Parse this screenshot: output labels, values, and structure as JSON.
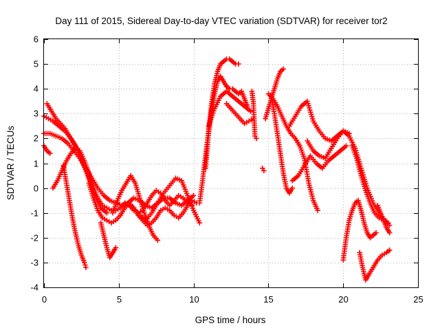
{
  "chart_data": {
    "type": "scatter",
    "title": "Day 111 of 2015, Sidereal Day-to-day VTEC variation (SDTVAR) for receiver tor2",
    "xlabel": "GPS time / hours",
    "ylabel": "SDTVAR / TECUs",
    "xlim": [
      0,
      25
    ],
    "ylim": [
      -4,
      6
    ],
    "xticks": [
      "0",
      "5",
      "10",
      "15",
      "20",
      "25"
    ],
    "yticks": [
      "-4",
      "-3",
      "-2",
      "-1",
      "0",
      "1",
      "2",
      "3",
      "4",
      "5",
      "6"
    ],
    "grid": true,
    "marker": "+",
    "color": "#ff0000",
    "series": [
      {
        "x": [
          0.0,
          0.3,
          0.6,
          1.0,
          1.4,
          1.8,
          2.2,
          2.6,
          3.0,
          3.4,
          3.8,
          4.2
        ],
        "y": [
          2.9,
          2.8,
          2.7,
          2.5,
          2.3,
          2.0,
          1.6,
          1.0,
          0.4,
          -0.3,
          -0.8,
          -1.0
        ]
      },
      {
        "x": [
          0.2,
          0.5,
          0.8,
          1.1,
          1.4,
          1.7,
          2.0,
          2.3,
          2.6,
          2.9,
          3.2
        ],
        "y": [
          3.4,
          3.1,
          2.8,
          2.6,
          2.4,
          2.1,
          1.8,
          1.5,
          1.1,
          0.6,
          0.1
        ]
      },
      {
        "x": [
          0.0,
          0.4,
          0.8,
          1.2,
          1.6,
          2.0,
          2.4,
          2.8,
          3.2,
          3.6,
          4.0,
          4.4,
          4.8,
          5.2,
          5.6,
          6.0,
          6.4,
          6.8,
          7.2,
          7.6,
          8.0,
          8.4,
          8.8,
          9.2,
          9.6,
          10.0
        ],
        "y": [
          2.2,
          2.2,
          2.1,
          2.0,
          1.8,
          1.5,
          1.2,
          0.8,
          0.4,
          0.0,
          -0.3,
          -0.5,
          -0.6,
          -0.7,
          -0.6,
          -0.4,
          -0.5,
          -0.7,
          -0.8,
          -0.6,
          -0.4,
          -0.4,
          -0.6,
          -0.7,
          -0.5,
          -0.3
        ]
      },
      {
        "x": [
          0.0,
          0.2,
          0.4
        ],
        "y": [
          1.7,
          1.5,
          1.4
        ]
      },
      {
        "x": [
          0.6,
          0.9,
          1.2,
          1.5,
          1.8,
          2.1,
          2.4,
          2.7,
          3.0,
          3.3,
          3.6,
          3.9,
          4.2,
          4.5,
          4.8,
          5.1,
          5.4,
          5.7,
          6.0,
          6.3,
          6.6,
          6.9,
          7.2,
          7.5,
          7.8,
          8.1,
          8.4,
          8.7,
          9.0,
          9.3,
          9.6,
          9.9
        ],
        "y": [
          0.0,
          0.3,
          0.7,
          1.1,
          1.4,
          1.6,
          1.5,
          1.1,
          0.6,
          0.0,
          -0.4,
          -0.7,
          -0.8,
          -0.9,
          -0.9,
          -0.8,
          -0.6,
          -0.7,
          -0.9,
          -1.0,
          -0.9,
          -0.6,
          -0.3,
          -0.1,
          -0.2,
          -0.5,
          -0.7,
          -0.5,
          -0.3,
          -0.4,
          -0.6,
          -0.7
        ]
      },
      {
        "x": [
          1.3,
          1.5,
          1.7,
          1.9,
          2.1,
          2.3,
          2.5,
          2.7,
          2.8
        ],
        "y": [
          0.9,
          0.2,
          -0.5,
          -1.2,
          -1.8,
          -2.3,
          -2.7,
          -3.0,
          -3.2
        ]
      },
      {
        "x": [
          3.0,
          3.3,
          3.6,
          3.9,
          4.2,
          4.5,
          4.8,
          5.1,
          5.4,
          5.7,
          6.0,
          6.3,
          6.6,
          6.9,
          7.2,
          7.5,
          7.8,
          8.1,
          8.4,
          8.7,
          9.0,
          9.3,
          9.6,
          9.9,
          10.2
        ],
        "y": [
          0.2,
          -0.4,
          -0.9,
          -1.2,
          -1.3,
          -1.4,
          -1.3,
          -1.1,
          -0.8,
          -0.6,
          -0.8,
          -1.1,
          -1.3,
          -1.5,
          -1.4,
          -1.2,
          -0.9,
          -0.8,
          -0.9,
          -1.1,
          -1.2,
          -1.0,
          -0.7,
          -0.5,
          -0.6
        ]
      },
      {
        "x": [
          3.8,
          4.0,
          4.2,
          4.4,
          4.6,
          4.8
        ],
        "y": [
          -1.4,
          -1.9,
          -2.4,
          -2.8,
          -2.6,
          -2.4
        ]
      },
      {
        "x": [
          4.6,
          4.9,
          5.2,
          5.5,
          5.8,
          6.1,
          6.4,
          6.7,
          7.0,
          7.3,
          7.6
        ],
        "y": [
          -1.0,
          -0.5,
          -0.1,
          0.2,
          0.5,
          0.2,
          -0.4,
          -1.0,
          -1.5,
          -1.9,
          -2.1
        ]
      },
      {
        "x": [
          6.0,
          6.4,
          6.8,
          7.2,
          7.6,
          8.0,
          8.4,
          8.8,
          9.2,
          9.6,
          10.0,
          10.4
        ],
        "y": [
          -0.8,
          -1.1,
          -1.3,
          -1.0,
          -0.6,
          -0.2,
          0.1,
          0.4,
          0.3,
          -0.3,
          -0.9,
          -1.4
        ]
      },
      {
        "x": [
          10.4,
          10.6,
          10.8,
          11.0,
          11.2,
          11.4,
          11.6,
          11.8,
          12.0,
          12.2,
          12.4,
          12.6,
          12.8,
          13.0,
          13.2,
          13.4,
          13.6
        ],
        "y": [
          -0.6,
          0.3,
          1.3,
          2.3,
          3.1,
          3.8,
          4.3,
          4.5,
          4.3,
          4.1,
          4.0,
          4.0,
          3.9,
          3.8,
          3.9,
          3.6,
          3.3
        ]
      },
      {
        "x": [
          10.8,
          11.0,
          11.2,
          11.4,
          11.6,
          11.8,
          12.0,
          12.2,
          12.4,
          12.6,
          12.8,
          13.0
        ],
        "y": [
          0.8,
          2.2,
          3.4,
          4.2,
          4.7,
          5.0,
          5.1,
          5.2,
          5.2,
          5.1,
          5.0,
          5.0
        ]
      },
      {
        "x": [
          11.0,
          11.4,
          11.8,
          12.2,
          12.6,
          13.0,
          13.4,
          13.8
        ],
        "y": [
          2.5,
          3.2,
          3.7,
          3.9,
          3.7,
          3.5,
          3.3,
          3.1
        ]
      },
      {
        "x": [
          12.2,
          12.5,
          12.8,
          13.1,
          13.4,
          13.7,
          14.0
        ],
        "y": [
          3.4,
          3.2,
          3.0,
          2.8,
          2.6,
          2.7,
          2.8
        ]
      },
      {
        "x": [
          13.9,
          14.0,
          14.1,
          14.2
        ],
        "y": [
          3.9,
          3.4,
          2.1,
          2.0
        ]
      },
      {
        "x": [
          14.6,
          14.7
        ],
        "y": [
          0.8,
          0.7
        ]
      },
      {
        "x": [
          14.8,
          15.0,
          15.2,
          15.4,
          15.6,
          15.8,
          16.0
        ],
        "y": [
          2.8,
          3.2,
          3.6,
          4.0,
          4.4,
          4.7,
          4.8
        ]
      },
      {
        "x": [
          15.0,
          15.3,
          15.6,
          15.9,
          16.2,
          16.5,
          16.8,
          17.1,
          17.4,
          17.7,
          18.0,
          18.3
        ],
        "y": [
          3.8,
          3.6,
          3.3,
          2.9,
          2.5,
          2.2,
          2.0,
          1.7,
          1.2,
          0.2,
          -0.5,
          -0.9
        ]
      },
      {
        "x": [
          15.2,
          15.4,
          15.6,
          15.8,
          16.0,
          16.2,
          16.4,
          16.6
        ],
        "y": [
          3.7,
          3.0,
          2.2,
          1.4,
          0.6,
          0.0,
          -0.2,
          0.0
        ]
      },
      {
        "x": [
          16.4,
          16.8,
          17.2,
          17.6,
          18.0,
          18.4,
          18.8,
          19.2,
          19.6,
          20.0,
          20.4
        ],
        "y": [
          2.5,
          2.9,
          3.3,
          3.5,
          2.7,
          2.3,
          2.0,
          1.9,
          2.1,
          2.3,
          2.2
        ]
      },
      {
        "x": [
          16.6,
          17.0,
          17.4,
          17.8,
          18.2,
          18.6,
          19.0,
          19.4,
          19.8,
          20.2
        ],
        "y": [
          0.3,
          0.5,
          0.9,
          1.3,
          1.0,
          0.8,
          1.1,
          1.3,
          1.5,
          1.7
        ]
      },
      {
        "x": [
          17.6,
          18.0,
          18.4,
          18.8,
          19.2,
          19.6,
          20.0,
          20.4,
          20.8,
          21.2,
          21.6,
          22.0,
          22.4,
          22.8,
          23.1
        ],
        "y": [
          1.9,
          1.5,
          1.3,
          1.2,
          1.6,
          2.0,
          2.3,
          2.1,
          1.6,
          0.8,
          0.0,
          -0.6,
          -1.0,
          -1.3,
          -1.5
        ]
      },
      {
        "x": [
          20.0,
          20.2,
          20.4,
          20.6,
          20.8,
          21.0,
          21.2,
          21.4,
          21.6,
          21.8,
          22.0,
          22.2
        ],
        "y": [
          -2.9,
          -2.0,
          -1.3,
          -0.9,
          -0.6,
          -0.5,
          -0.9,
          -1.4,
          -1.8,
          -2.0,
          -1.9,
          -1.8
        ]
      },
      {
        "x": [
          20.6,
          20.9,
          21.2,
          21.5,
          21.8,
          22.1,
          22.4,
          22.7,
          23.0
        ],
        "y": [
          1.7,
          1.2,
          0.5,
          -0.1,
          -0.6,
          -1.0,
          -1.2,
          -1.3,
          -1.4
        ]
      },
      {
        "x": [
          21.1,
          21.3,
          21.5,
          21.7,
          22.0,
          22.3,
          22.6,
          22.9,
          23.1
        ],
        "y": [
          -2.6,
          -3.2,
          -3.7,
          -3.5,
          -3.2,
          -2.9,
          -2.7,
          -2.6,
          -2.5
        ]
      },
      {
        "x": [
          22.3,
          22.5,
          22.7,
          22.9,
          23.1
        ],
        "y": [
          -0.7,
          -1.0,
          -1.3,
          -1.6,
          -1.8
        ]
      }
    ]
  }
}
